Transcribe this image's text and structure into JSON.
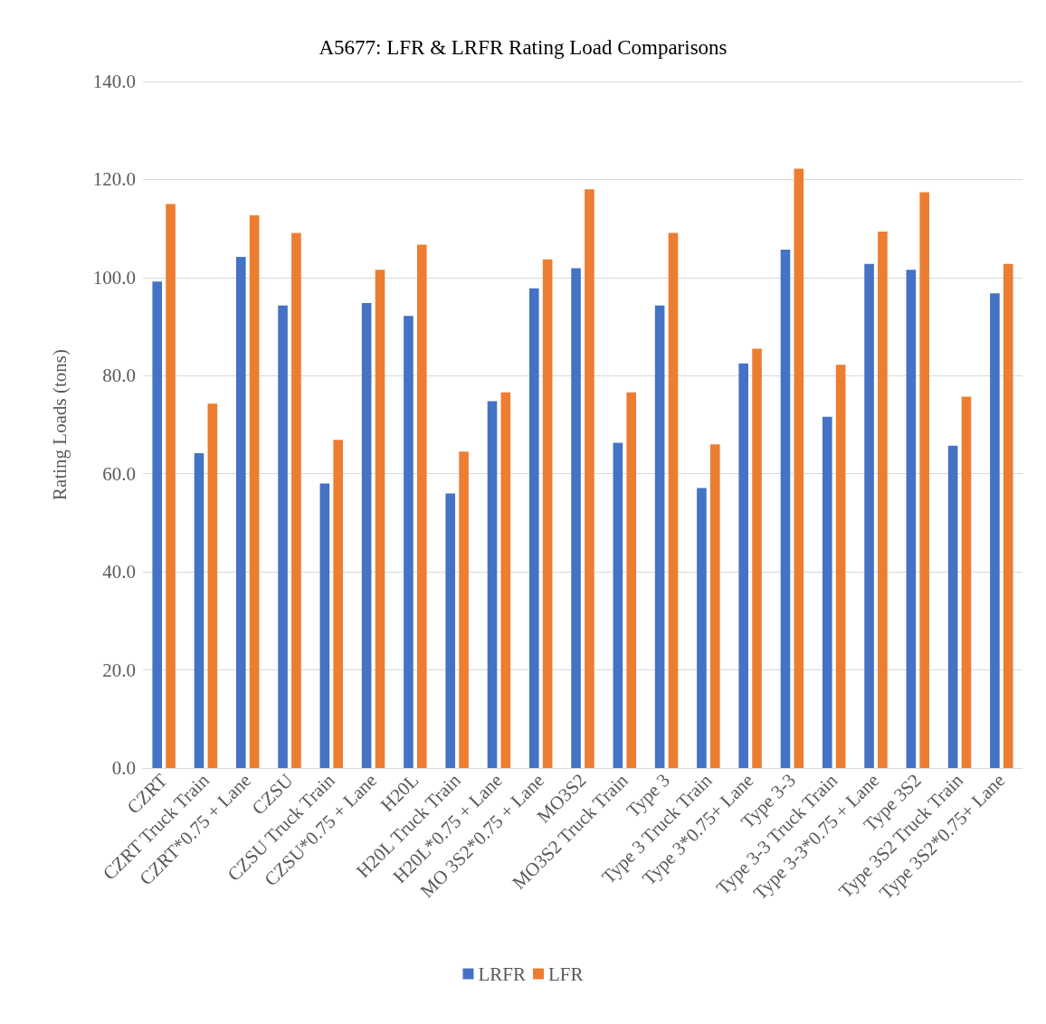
{
  "chart_data": {
    "type": "bar",
    "title": "A5677: LFR & LRFR Rating Load Comparisons",
    "ylabel": "Rating Loads (tons)",
    "categories": [
      "CZRT",
      "CZRT Truck Train",
      "CZRT*0.75 + Lane",
      "CZSU",
      "CZSU Truck Train",
      "CZSU*0.75 + Lane",
      "H20L",
      "H20L Truck Train",
      "H20L*0.75 + Lane",
      "MO 3S2*0.75 + Lane",
      "MO3S2",
      "MO3S2 Truck Train",
      "Type 3",
      "Type 3 Truck Train",
      "Type 3*0.75+ Lane",
      "Type 3-3",
      "Type 3-3 Truck Train",
      "Type 3-3*0.75 + Lane",
      "Type 3S2",
      "Type 3S2 Truck Train",
      "Type 3S2*0.75+ Lane"
    ],
    "series": [
      {
        "name": "LRFR",
        "color": "#4472c4",
        "values": [
          99.2,
          64.2,
          104.2,
          94.3,
          58.0,
          94.8,
          92.2,
          56.0,
          74.8,
          97.8,
          101.9,
          66.3,
          94.3,
          57.1,
          82.5,
          105.7,
          71.6,
          102.8,
          101.6,
          65.7,
          96.8
        ]
      },
      {
        "name": "LFR",
        "color": "#ed7d31",
        "values": [
          115.0,
          74.3,
          112.7,
          109.1,
          66.9,
          101.6,
          106.7,
          64.5,
          76.6,
          103.7,
          118.0,
          76.6,
          109.1,
          66.0,
          85.5,
          122.2,
          82.2,
          109.4,
          117.4,
          75.7,
          102.8
        ]
      }
    ],
    "ylim": [
      0,
      140
    ],
    "yticks": [
      {
        "value": 0,
        "label": "0.0"
      },
      {
        "value": 20,
        "label": "20.0"
      },
      {
        "value": 40,
        "label": "40.0"
      },
      {
        "value": 60,
        "label": "60.0"
      },
      {
        "value": 80,
        "label": "80.0"
      },
      {
        "value": 100,
        "label": "100.0"
      },
      {
        "value": 120,
        "label": "120.0"
      },
      {
        "value": 140,
        "label": "140.0"
      }
    ],
    "grid": "y",
    "legend": "bottom"
  }
}
